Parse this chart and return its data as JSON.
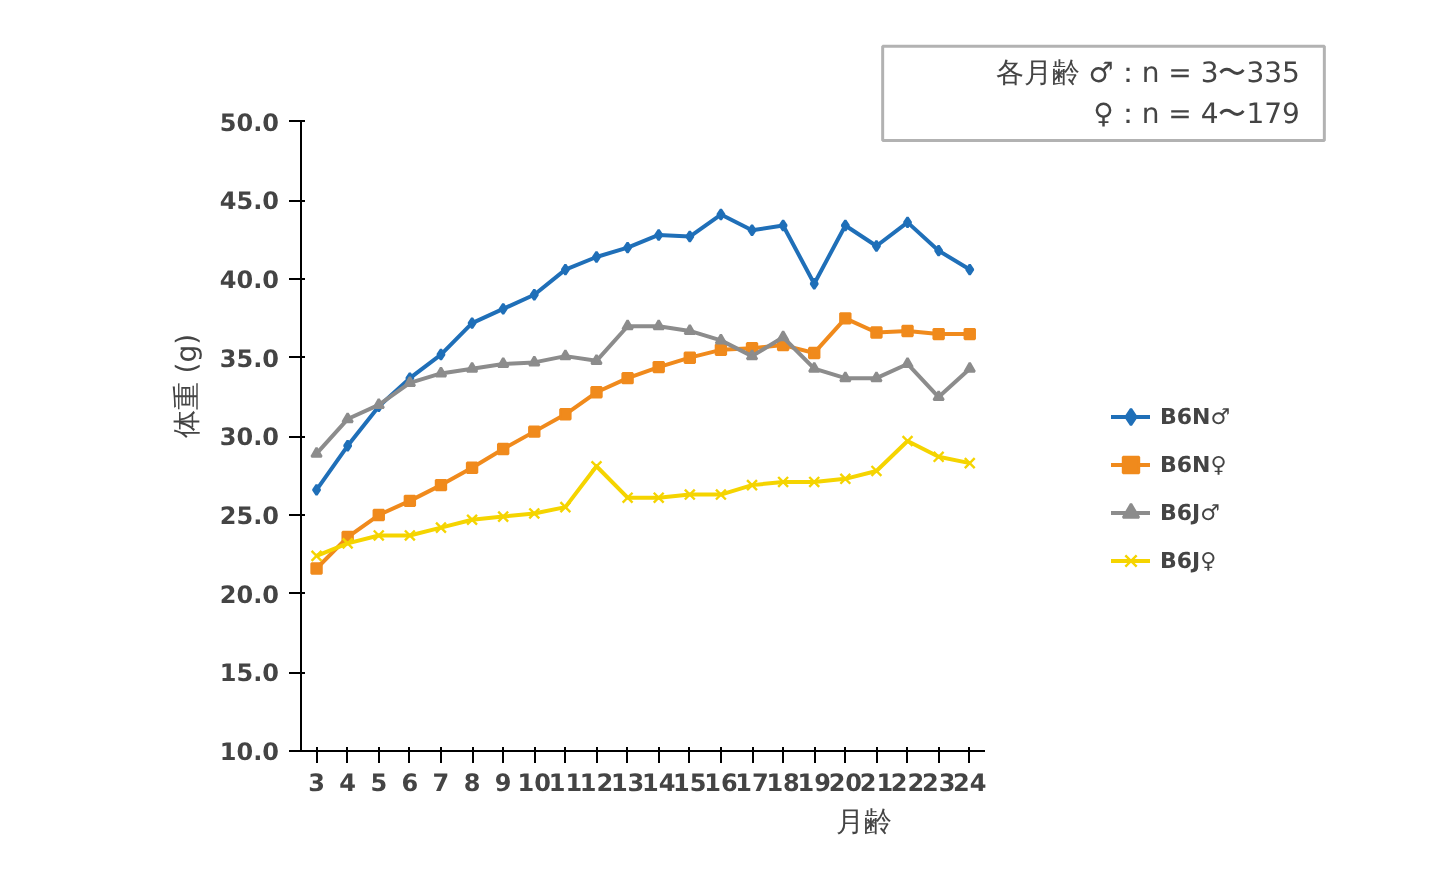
{
  "chart_data": {
    "type": "line",
    "xlabel": "月齢",
    "ylabel": "体重 (g)",
    "categories": [
      "3",
      "4",
      "5",
      "6",
      "7",
      "8",
      "9",
      "10",
      "11",
      "12",
      "13",
      "14",
      "15",
      "16",
      "17",
      "18",
      "19",
      "20",
      "21",
      "22",
      "23",
      "24"
    ],
    "ylim": [
      10,
      50
    ],
    "yticks": [
      {
        "value": 10,
        "label": "10.0"
      },
      {
        "value": 15,
        "label": "15.0"
      },
      {
        "value": 20,
        "label": "20.0"
      },
      {
        "value": 25,
        "label": "25.0"
      },
      {
        "value": 30,
        "label": "30.0"
      },
      {
        "value": 35,
        "label": "35.0"
      },
      {
        "value": 40,
        "label": "40.0"
      },
      {
        "value": 45,
        "label": "45.0"
      },
      {
        "value": 50,
        "label": "50.0"
      }
    ],
    "grid": false,
    "legend": "right",
    "annotations": [
      "各月齢 ♂：n =  3〜335",
      "♀：n =  4〜179"
    ],
    "series": [
      {
        "name": "B6N♂",
        "color": "#1f6fb8",
        "marker": "diamond",
        "values": [
          26.6,
          29.4,
          31.9,
          33.7,
          35.2,
          37.2,
          38.1,
          39.0,
          40.6,
          41.4,
          42.0,
          42.8,
          42.7,
          44.1,
          43.1,
          43.4,
          39.7,
          43.4,
          42.1,
          43.6,
          41.8,
          40.6
        ]
      },
      {
        "name": "B6N♀",
        "color": "#f08a1c",
        "marker": "square",
        "values": [
          21.6,
          23.6,
          25.0,
          25.9,
          26.9,
          28.0,
          29.2,
          30.3,
          31.4,
          32.8,
          33.7,
          34.4,
          35.0,
          35.5,
          35.6,
          35.8,
          35.3,
          37.5,
          36.6,
          36.7,
          36.5,
          36.5
        ]
      },
      {
        "name": "B6J♂",
        "color": "#8c8c8c",
        "marker": "triangle",
        "values": [
          28.9,
          31.1,
          32.0,
          33.4,
          34.0,
          34.3,
          34.6,
          34.7,
          35.1,
          34.8,
          37.0,
          37.0,
          36.7,
          36.1,
          35.1,
          36.3,
          34.3,
          33.7,
          33.7,
          34.6,
          32.5,
          34.3
        ]
      },
      {
        "name": "B6J♀",
        "color": "#f5d400",
        "marker": "cross",
        "values": [
          22.4,
          23.2,
          23.7,
          23.7,
          24.2,
          24.7,
          24.9,
          25.1,
          25.5,
          28.1,
          26.1,
          26.1,
          26.3,
          26.3,
          26.9,
          27.1,
          27.1,
          27.3,
          27.8,
          29.7,
          28.7,
          28.3
        ]
      }
    ]
  }
}
